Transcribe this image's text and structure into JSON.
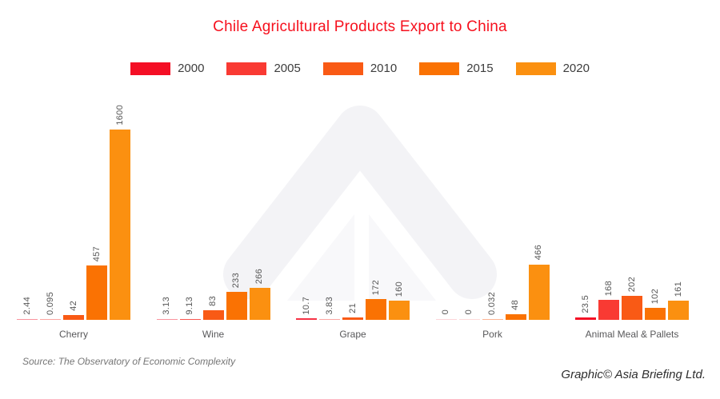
{
  "title": "Chile Agricultural Products Export to China",
  "source": "Source: The Observatory of Economic Complexity",
  "credit": "Graphic© Asia Briefing Ltd.",
  "colors": {
    "title": "#F6111E",
    "value_label": "#565656",
    "category_label": "#58585a",
    "watermark_outer": "#F3F3F6",
    "watermark_inner": "#F8F8FA"
  },
  "chart_data": {
    "type": "bar",
    "title": "Chile Agricultural Products Export to China",
    "categories": [
      "Cherry",
      "Wine",
      "Grape",
      "Pork",
      "Animal Meal & Pallets"
    ],
    "series": [
      {
        "name": "2000",
        "color": "#F40F25",
        "values": [
          2.44,
          3.13,
          10.7,
          0,
          23.5
        ],
        "labels": [
          "2.44",
          "3.13",
          "10.7",
          "0",
          "23.5"
        ]
      },
      {
        "name": "2005",
        "color": "#F93A33",
        "values": [
          0.095,
          9.13,
          3.83,
          0,
          168
        ],
        "labels": [
          "0.095",
          "9.13",
          "3.83",
          "0",
          "168"
        ]
      },
      {
        "name": "2010",
        "color": "#F95A15",
        "values": [
          42,
          83,
          21,
          0.032,
          202
        ],
        "labels": [
          "42",
          "83",
          "21",
          "0.032",
          "202"
        ]
      },
      {
        "name": "2015",
        "color": "#FA7203",
        "values": [
          457,
          233,
          172,
          48,
          102
        ],
        "labels": [
          "457",
          "233",
          "172",
          "48",
          "102"
        ]
      },
      {
        "name": "2020",
        "color": "#FB9010",
        "values": [
          1600,
          266,
          160,
          466,
          161
        ],
        "labels": [
          "1600",
          "266",
          "160",
          "466",
          "161"
        ]
      }
    ],
    "ylim": [
      0,
      1600
    ],
    "value_labels": true,
    "value_label_rotation": 90,
    "legend_position": "top",
    "grid": false,
    "axis_lines": false
  }
}
